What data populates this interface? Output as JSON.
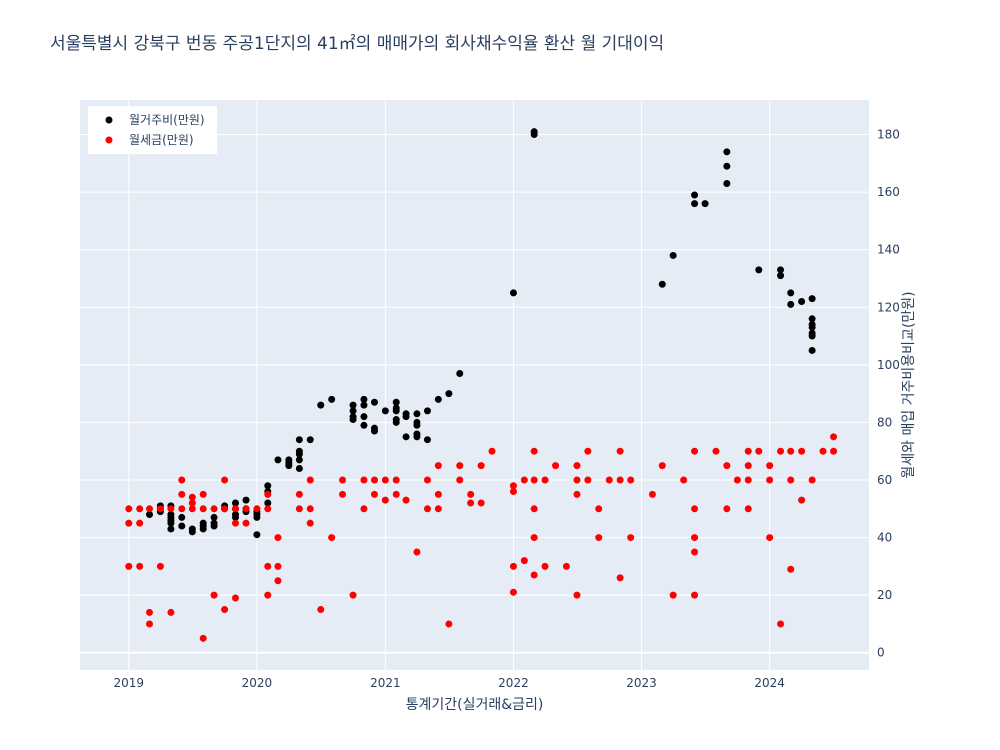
{
  "chart_data": {
    "type": "scatter",
    "title": "서울특별시 강북구 번동 주공1단지의 41㎡의 매매가의 회사채수익율 환산 월 기대이익",
    "xlabel": "통계기간(실거래&금리)",
    "ylabel": "월세와 매입 거주비용비교(만원)",
    "xlim": [
      "2018-08-15",
      "2024-10-10"
    ],
    "ylim": [
      -6,
      192
    ],
    "x_ticks": [
      "2019",
      "2020",
      "2021",
      "2022",
      "2023",
      "2024"
    ],
    "y_ticks": [
      "0",
      "20",
      "40",
      "60",
      "80",
      "100",
      "120",
      "140",
      "160",
      "180"
    ],
    "y_axis_side": "right",
    "grid": true,
    "legend_position": "top-left",
    "series": [
      {
        "name": "월거주비(만원)",
        "color": "#000000",
        "points": [
          [
            "2019-03-01",
            48
          ],
          [
            "2019-04-01",
            49
          ],
          [
            "2019-04-01",
            50
          ],
          [
            "2019-04-01",
            51
          ],
          [
            "2019-05-01",
            43
          ],
          [
            "2019-05-01",
            45
          ],
          [
            "2019-05-01",
            46
          ],
          [
            "2019-05-01",
            47
          ],
          [
            "2019-05-01",
            48
          ],
          [
            "2019-05-01",
            51
          ],
          [
            "2019-06-01",
            44
          ],
          [
            "2019-06-01",
            47
          ],
          [
            "2019-07-01",
            42
          ],
          [
            "2019-07-01",
            43
          ],
          [
            "2019-08-01",
            43
          ],
          [
            "2019-08-01",
            44
          ],
          [
            "2019-08-01",
            45
          ],
          [
            "2019-09-01",
            44
          ],
          [
            "2019-09-01",
            45
          ],
          [
            "2019-09-01",
            47
          ],
          [
            "2019-10-01",
            50
          ],
          [
            "2019-10-01",
            51
          ],
          [
            "2019-11-01",
            47
          ],
          [
            "2019-11-01",
            48
          ],
          [
            "2019-11-01",
            50
          ],
          [
            "2019-11-01",
            52
          ],
          [
            "2019-12-01",
            49
          ],
          [
            "2019-12-01",
            50
          ],
          [
            "2019-12-01",
            53
          ],
          [
            "2020-01-01",
            41
          ],
          [
            "2020-01-01",
            47
          ],
          [
            "2020-01-01",
            48
          ],
          [
            "2020-01-01",
            49
          ],
          [
            "2020-02-01",
            52
          ],
          [
            "2020-02-01",
            56
          ],
          [
            "2020-02-01",
            58
          ],
          [
            "2020-03-01",
            67
          ],
          [
            "2020-04-01",
            65
          ],
          [
            "2020-04-01",
            66
          ],
          [
            "2020-04-01",
            67
          ],
          [
            "2020-05-01",
            64
          ],
          [
            "2020-05-01",
            67
          ],
          [
            "2020-05-01",
            69
          ],
          [
            "2020-05-01",
            70
          ],
          [
            "2020-05-01",
            74
          ],
          [
            "2020-06-01",
            74
          ],
          [
            "2020-07-01",
            86
          ],
          [
            "2020-08-01",
            88
          ],
          [
            "2020-10-01",
            81
          ],
          [
            "2020-10-01",
            82
          ],
          [
            "2020-10-01",
            84
          ],
          [
            "2020-10-01",
            86
          ],
          [
            "2020-11-01",
            79
          ],
          [
            "2020-11-01",
            82
          ],
          [
            "2020-11-01",
            86
          ],
          [
            "2020-11-01",
            88
          ],
          [
            "2020-12-01",
            77
          ],
          [
            "2020-12-01",
            78
          ],
          [
            "2020-12-01",
            87
          ],
          [
            "2021-01-01",
            84
          ],
          [
            "2021-02-01",
            80
          ],
          [
            "2021-02-01",
            81
          ],
          [
            "2021-02-01",
            84
          ],
          [
            "2021-02-01",
            85
          ],
          [
            "2021-02-01",
            87
          ],
          [
            "2021-03-01",
            75
          ],
          [
            "2021-03-01",
            82
          ],
          [
            "2021-03-01",
            83
          ],
          [
            "2021-04-01",
            75
          ],
          [
            "2021-04-01",
            76
          ],
          [
            "2021-04-01",
            79
          ],
          [
            "2021-04-01",
            80
          ],
          [
            "2021-04-01",
            83
          ],
          [
            "2021-05-01",
            74
          ],
          [
            "2021-05-01",
            84
          ],
          [
            "2021-06-01",
            88
          ],
          [
            "2021-07-01",
            90
          ],
          [
            "2021-08-01",
            97
          ],
          [
            "2022-01-01",
            125
          ],
          [
            "2022-03-01",
            180
          ],
          [
            "2022-03-01",
            181
          ],
          [
            "2023-03-01",
            128
          ],
          [
            "2023-04-01",
            138
          ],
          [
            "2023-06-01",
            156
          ],
          [
            "2023-06-01",
            159
          ],
          [
            "2023-07-01",
            156
          ],
          [
            "2023-09-01",
            163
          ],
          [
            "2023-09-01",
            169
          ],
          [
            "2023-09-01",
            174
          ],
          [
            "2023-12-01",
            133
          ],
          [
            "2024-02-01",
            131
          ],
          [
            "2024-02-01",
            133
          ],
          [
            "2024-03-01",
            121
          ],
          [
            "2024-03-01",
            125
          ],
          [
            "2024-04-01",
            122
          ],
          [
            "2024-05-01",
            105
          ],
          [
            "2024-05-01",
            110
          ],
          [
            "2024-05-01",
            111
          ],
          [
            "2024-05-01",
            113
          ],
          [
            "2024-05-01",
            114
          ],
          [
            "2024-05-01",
            116
          ],
          [
            "2024-05-01",
            123
          ]
        ]
      },
      {
        "name": "월세금(만원)",
        "color": "#ff0000",
        "points": [
          [
            "2019-01-01",
            30
          ],
          [
            "2019-01-01",
            45
          ],
          [
            "2019-01-01",
            50
          ],
          [
            "2019-02-01",
            30
          ],
          [
            "2019-02-01",
            45
          ],
          [
            "2019-02-01",
            50
          ],
          [
            "2019-03-01",
            10
          ],
          [
            "2019-03-01",
            14
          ],
          [
            "2019-03-01",
            50
          ],
          [
            "2019-04-01",
            30
          ],
          [
            "2019-04-01",
            50
          ],
          [
            "2019-05-01",
            14
          ],
          [
            "2019-05-01",
            50
          ],
          [
            "2019-06-01",
            50
          ],
          [
            "2019-06-01",
            55
          ],
          [
            "2019-06-01",
            60
          ],
          [
            "2019-07-01",
            50
          ],
          [
            "2019-07-01",
            52
          ],
          [
            "2019-07-01",
            54
          ],
          [
            "2019-08-01",
            5
          ],
          [
            "2019-08-01",
            50
          ],
          [
            "2019-08-01",
            55
          ],
          [
            "2019-09-01",
            20
          ],
          [
            "2019-09-01",
            50
          ],
          [
            "2019-10-01",
            15
          ],
          [
            "2019-10-01",
            50
          ],
          [
            "2019-10-01",
            60
          ],
          [
            "2019-11-01",
            19
          ],
          [
            "2019-11-01",
            45
          ],
          [
            "2019-11-01",
            50
          ],
          [
            "2019-12-01",
            45
          ],
          [
            "2019-12-01",
            50
          ],
          [
            "2020-01-01",
            50
          ],
          [
            "2020-02-01",
            20
          ],
          [
            "2020-02-01",
            30
          ],
          [
            "2020-02-01",
            50
          ],
          [
            "2020-02-01",
            55
          ],
          [
            "2020-03-01",
            25
          ],
          [
            "2020-03-01",
            30
          ],
          [
            "2020-03-01",
            40
          ],
          [
            "2020-05-01",
            50
          ],
          [
            "2020-05-01",
            55
          ],
          [
            "2020-06-01",
            45
          ],
          [
            "2020-06-01",
            50
          ],
          [
            "2020-06-01",
            60
          ],
          [
            "2020-07-01",
            15
          ],
          [
            "2020-08-01",
            40
          ],
          [
            "2020-09-01",
            55
          ],
          [
            "2020-09-01",
            60
          ],
          [
            "2020-10-01",
            20
          ],
          [
            "2020-11-01",
            50
          ],
          [
            "2020-11-01",
            60
          ],
          [
            "2020-12-01",
            55
          ],
          [
            "2020-12-01",
            60
          ],
          [
            "2021-01-01",
            53
          ],
          [
            "2021-01-01",
            60
          ],
          [
            "2021-02-01",
            55
          ],
          [
            "2021-02-01",
            60
          ],
          [
            "2021-03-01",
            53
          ],
          [
            "2021-04-01",
            35
          ],
          [
            "2021-05-01",
            50
          ],
          [
            "2021-05-01",
            60
          ],
          [
            "2021-06-01",
            50
          ],
          [
            "2021-06-01",
            55
          ],
          [
            "2021-06-01",
            65
          ],
          [
            "2021-07-01",
            10
          ],
          [
            "2021-08-01",
            60
          ],
          [
            "2021-08-01",
            65
          ],
          [
            "2021-09-01",
            52
          ],
          [
            "2021-09-01",
            55
          ],
          [
            "2021-10-01",
            52
          ],
          [
            "2021-10-01",
            65
          ],
          [
            "2021-11-01",
            70
          ],
          [
            "2022-01-01",
            21
          ],
          [
            "2022-01-01",
            30
          ],
          [
            "2022-01-01",
            56
          ],
          [
            "2022-01-01",
            58
          ],
          [
            "2022-02-01",
            32
          ],
          [
            "2022-02-01",
            60
          ],
          [
            "2022-03-01",
            27
          ],
          [
            "2022-03-01",
            40
          ],
          [
            "2022-03-01",
            50
          ],
          [
            "2022-03-01",
            60
          ],
          [
            "2022-03-01",
            70
          ],
          [
            "2022-04-01",
            30
          ],
          [
            "2022-04-01",
            60
          ],
          [
            "2022-05-01",
            65
          ],
          [
            "2022-06-01",
            30
          ],
          [
            "2022-07-01",
            20
          ],
          [
            "2022-07-01",
            55
          ],
          [
            "2022-07-01",
            60
          ],
          [
            "2022-07-01",
            65
          ],
          [
            "2022-08-01",
            60
          ],
          [
            "2022-08-01",
            70
          ],
          [
            "2022-09-01",
            40
          ],
          [
            "2022-09-01",
            50
          ],
          [
            "2022-10-01",
            60
          ],
          [
            "2022-11-01",
            26
          ],
          [
            "2022-11-01",
            60
          ],
          [
            "2022-11-01",
            70
          ],
          [
            "2022-12-01",
            40
          ],
          [
            "2022-12-01",
            60
          ],
          [
            "2023-02-01",
            55
          ],
          [
            "2023-03-01",
            65
          ],
          [
            "2023-04-01",
            20
          ],
          [
            "2023-05-01",
            60
          ],
          [
            "2023-06-01",
            20
          ],
          [
            "2023-06-01",
            35
          ],
          [
            "2023-06-01",
            40
          ],
          [
            "2023-06-01",
            50
          ],
          [
            "2023-06-01",
            70
          ],
          [
            "2023-08-01",
            70
          ],
          [
            "2023-09-01",
            50
          ],
          [
            "2023-09-01",
            65
          ],
          [
            "2023-10-01",
            60
          ],
          [
            "2023-11-01",
            50
          ],
          [
            "2023-11-01",
            60
          ],
          [
            "2023-11-01",
            65
          ],
          [
            "2023-11-01",
            70
          ],
          [
            "2023-12-01",
            70
          ],
          [
            "2024-01-01",
            40
          ],
          [
            "2024-01-01",
            60
          ],
          [
            "2024-01-01",
            65
          ],
          [
            "2024-02-01",
            10
          ],
          [
            "2024-02-01",
            70
          ],
          [
            "2024-03-01",
            29
          ],
          [
            "2024-03-01",
            60
          ],
          [
            "2024-03-01",
            70
          ],
          [
            "2024-04-01",
            53
          ],
          [
            "2024-04-01",
            70
          ],
          [
            "2024-05-01",
            60
          ],
          [
            "2024-06-01",
            70
          ],
          [
            "2024-07-01",
            70
          ],
          [
            "2024-07-01",
            75
          ]
        ]
      }
    ]
  }
}
